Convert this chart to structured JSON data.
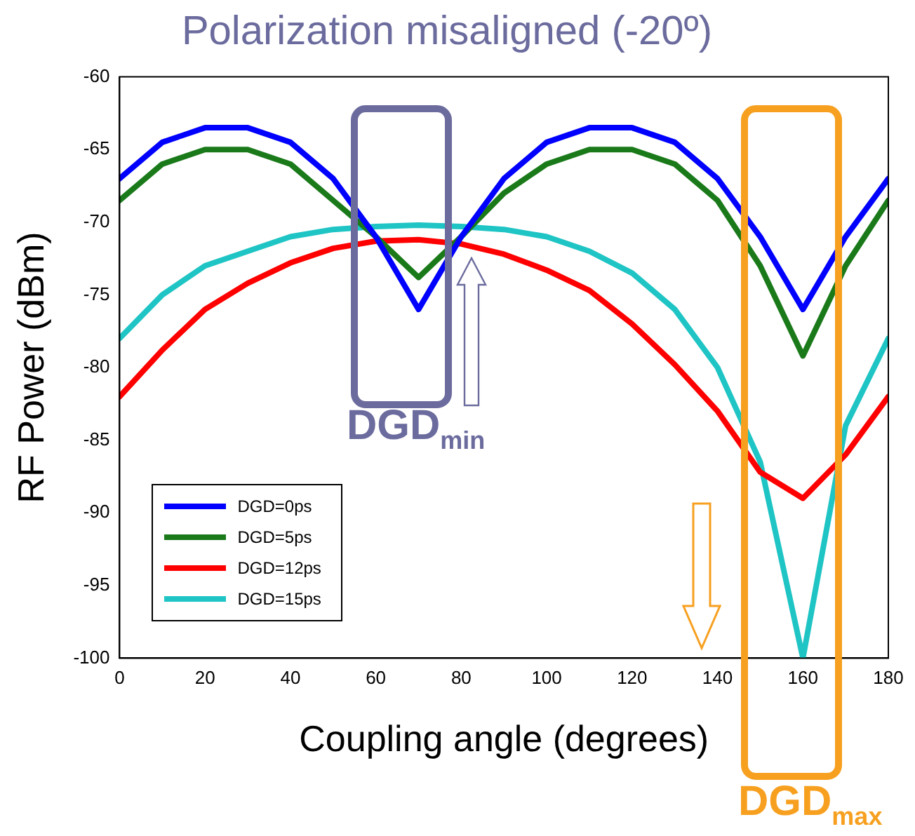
{
  "chart_data": {
    "type": "line",
    "title": "Polarization misaligned (-20º)",
    "xlabel": "Coupling angle (degrees)",
    "ylabel": "RF Power (dBm)",
    "x": [
      0,
      10,
      20,
      30,
      40,
      50,
      60,
      70,
      80,
      90,
      100,
      110,
      120,
      130,
      140,
      150,
      160,
      170,
      180
    ],
    "series": [
      {
        "name": "DGD=0ps",
        "color": "#0000ff",
        "values": [
          -67,
          -64.5,
          -63.5,
          -63.5,
          -64.5,
          -67,
          -71,
          -76,
          -71,
          -67,
          -64.5,
          -63.5,
          -63.5,
          -64.5,
          -67,
          -71,
          -76,
          -71,
          -67
        ]
      },
      {
        "name": "DGD=5ps",
        "color": "#1a7a1a",
        "values": [
          -68.5,
          -66,
          -65,
          -65,
          -66,
          -68.5,
          -71,
          -73.8,
          -71,
          -68,
          -66,
          -65,
          -65,
          -66,
          -68.5,
          -73,
          -79.2,
          -73,
          -68.5
        ]
      },
      {
        "name": "DGD=12ps",
        "color": "#ff0000",
        "values": [
          -82,
          -78.8,
          -76,
          -74.2,
          -72.8,
          -71.8,
          -71.3,
          -71.2,
          -71.5,
          -72.2,
          -73.3,
          -74.7,
          -77,
          -79.8,
          -83,
          -87.2,
          -89,
          -86,
          -82
        ]
      },
      {
        "name": "DGD=15ps",
        "color": "#1fc4c4",
        "values": [
          -78,
          -75,
          -73,
          -72,
          -71,
          -70.5,
          -70.3,
          -70.2,
          -70.3,
          -70.5,
          -71,
          -72,
          -73.5,
          -76,
          -80,
          -86.5,
          -100,
          -84,
          -78
        ]
      }
    ],
    "xlim": [
      0,
      180
    ],
    "xticks": [
      0,
      20,
      40,
      60,
      80,
      100,
      120,
      140,
      160,
      180
    ],
    "ylim": [
      -100,
      -60
    ],
    "yticks": [
      -100,
      -95,
      -90,
      -85,
      -80,
      -75,
      -70,
      -65,
      -60
    ],
    "grid": false,
    "legend": "bottom left",
    "marker": "none",
    "line_style": "solid",
    "annotations": [
      "DGD$_{min}$",
      "DGD$_{max}$"
    ]
  }
}
